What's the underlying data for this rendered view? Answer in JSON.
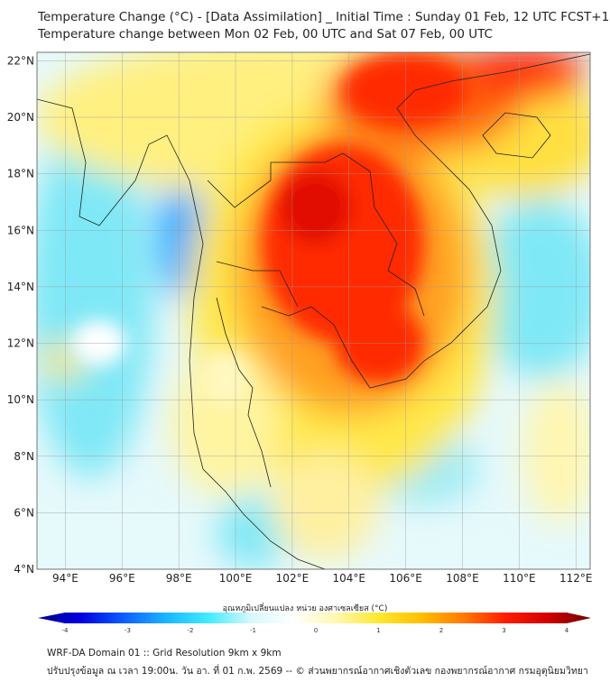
{
  "title": {
    "line1": "Temperature Change (°C) - [Data Assimilation] _ Initial Time : Sunday 01 Feb, 12 UTC FCST+120",
    "line2": "Temperature change between Mon 02 Feb, 00 UTC and Sat 07 Feb, 00 UTC"
  },
  "map": {
    "lon_range": [
      93,
      112.5
    ],
    "lat_range": [
      4,
      22.3
    ],
    "lon_ticks": [
      {
        "v": 94,
        "label": "94°E"
      },
      {
        "v": 96,
        "label": "96°E"
      },
      {
        "v": 98,
        "label": "98°E"
      },
      {
        "v": 100,
        "label": "100°E"
      },
      {
        "v": 102,
        "label": "102°E"
      },
      {
        "v": 104,
        "label": "104°E"
      },
      {
        "v": 106,
        "label": "106°E"
      },
      {
        "v": 108,
        "label": "108°E"
      },
      {
        "v": 110,
        "label": "110°E"
      },
      {
        "v": 112,
        "label": "112°E"
      }
    ],
    "lat_ticks": [
      {
        "v": 4,
        "label": "4°N"
      },
      {
        "v": 6,
        "label": "6°N"
      },
      {
        "v": 8,
        "label": "8°N"
      },
      {
        "v": 10,
        "label": "10°N"
      },
      {
        "v": 12,
        "label": "12°N"
      },
      {
        "v": 14,
        "label": "14°N"
      },
      {
        "v": 16,
        "label": "16°N"
      },
      {
        "v": 18,
        "label": "18°N"
      },
      {
        "v": 20,
        "label": "20°N"
      },
      {
        "v": 22,
        "label": "22°N"
      }
    ]
  },
  "colorbar": {
    "label": "อุณหภูมิเปลี่ยนแปลง หน่วย องศาเซลเซียส (°C)",
    "min": -4,
    "max": 4,
    "ticks": [
      "-4",
      "-3",
      "-2",
      "-1",
      "0",
      "1",
      "2",
      "3",
      "4"
    ],
    "colors": [
      "#00008a",
      "#0000e0",
      "#0a5cff",
      "#1ab4ff",
      "#40ecff",
      "#d8f8fb",
      "#ffffff",
      "#fff8b0",
      "#ffe830",
      "#ffc000",
      "#ff7a00",
      "#ff1c00",
      "#d00000",
      "#700000"
    ]
  },
  "footer": {
    "line1": "WRF-DA Domain 01 :: Grid Resolution 9km x 9km",
    "line2": "ปรับปรุงข้อมูล ณ เวลา 19:00น. วัน อา. ที่ 01 ก.พ. 2569 -- © ส่วนพยากรณ์อากาศเชิงตัวเลข กองพยากรณ์อากาศ กรมอุตุนิยมวิทยา"
  }
}
